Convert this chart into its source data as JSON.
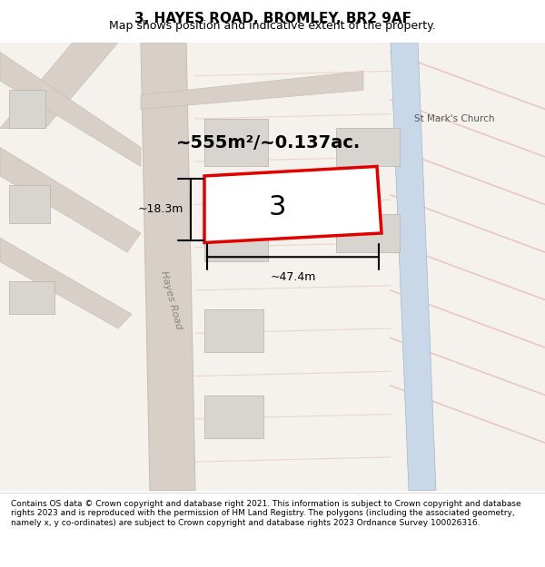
{
  "title": "3, HAYES ROAD, BROMLEY, BR2 9AF",
  "subtitle": "Map shows position and indicative extent of the property.",
  "footer": "Contains OS data © Crown copyright and database right 2021. This information is subject to Crown copyright and database rights 2023 and is reproduced with the permission of HM Land Registry. The polygons (including the associated geometry, namely x, y co-ordinates) are subject to Crown copyright and database rights 2023 Ordnance Survey 100026316.",
  "area_text": "~555m²/~0.137ac.",
  "width_label": "~47.4m",
  "height_label": "~18.3m",
  "road_label": "Hayes Road",
  "church_label": "St Mark's Church",
  "number_label": "3",
  "bg_color": "#f0ede8",
  "map_bg": "#f5f2ee",
  "road_color": "#d8d0c8",
  "road_line_color": "#c8bfb5",
  "plot_outline_color": "#e00000",
  "plot_fill_color": "#ffffff",
  "dimension_color": "#000000",
  "grid_line_color": "#e8c8c0",
  "blue_path_color": "#c8d8e8",
  "gray_block_color": "#d8d4cf",
  "title_fontsize": 11,
  "subtitle_fontsize": 9,
  "footer_fontsize": 6.5
}
